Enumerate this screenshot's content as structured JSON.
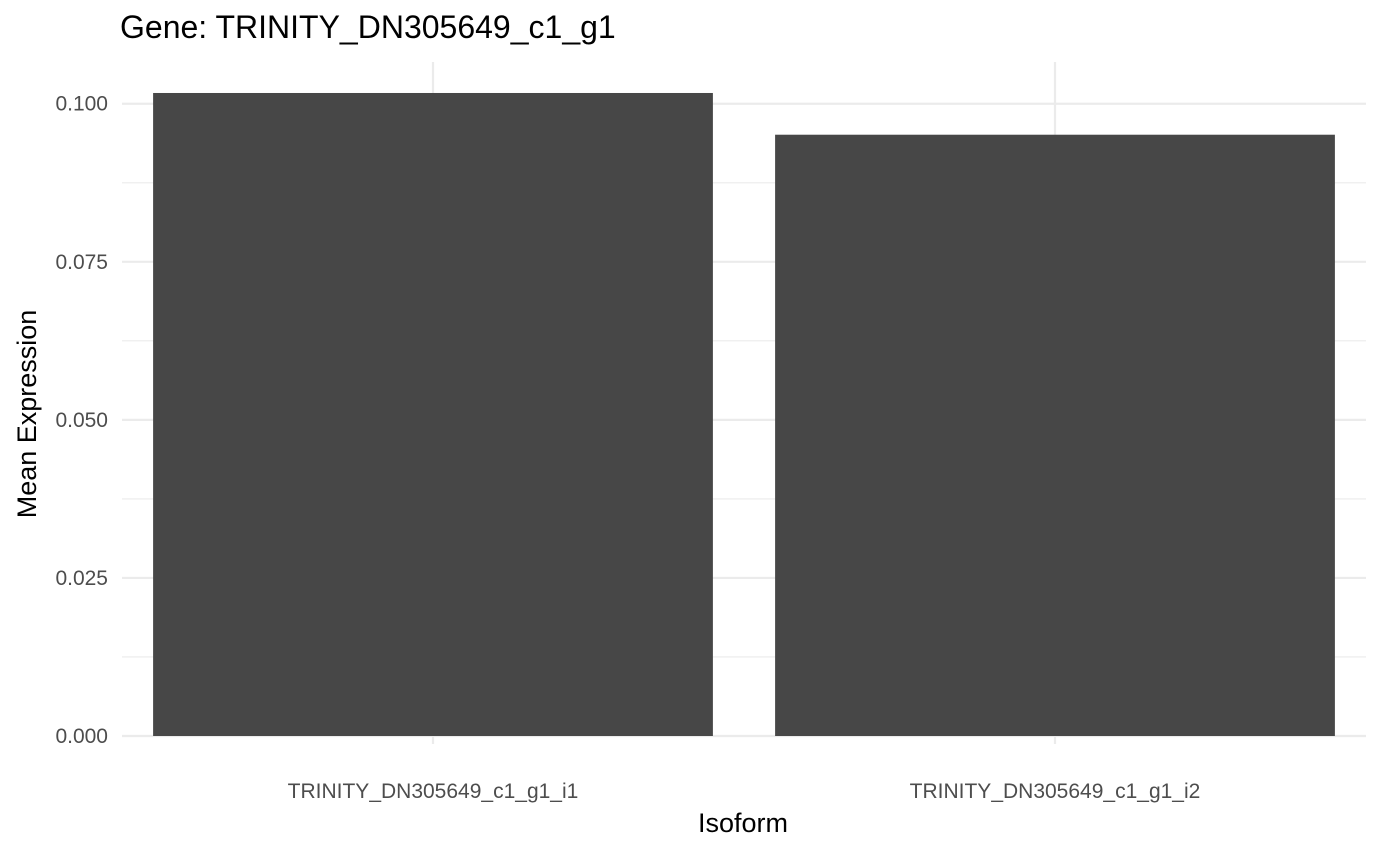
{
  "chart_data": {
    "type": "bar",
    "title": "Gene: TRINITY_DN305649_c1_g1",
    "xlabel": "Isoform",
    "ylabel": "Mean Expression",
    "categories": [
      "TRINITY_DN305649_c1_g1_i1",
      "TRINITY_DN305649_c1_g1_i2"
    ],
    "values": [
      0.1017,
      0.0951
    ],
    "ylim": [
      0,
      0.1066
    ],
    "yticks": [
      0.0,
      0.025,
      0.05,
      0.075,
      0.1
    ],
    "ytick_labels": [
      "0.000",
      "0.025",
      "0.050",
      "0.075",
      "0.100"
    ],
    "bar_color": "#474747",
    "grid": true,
    "legend": "none"
  }
}
